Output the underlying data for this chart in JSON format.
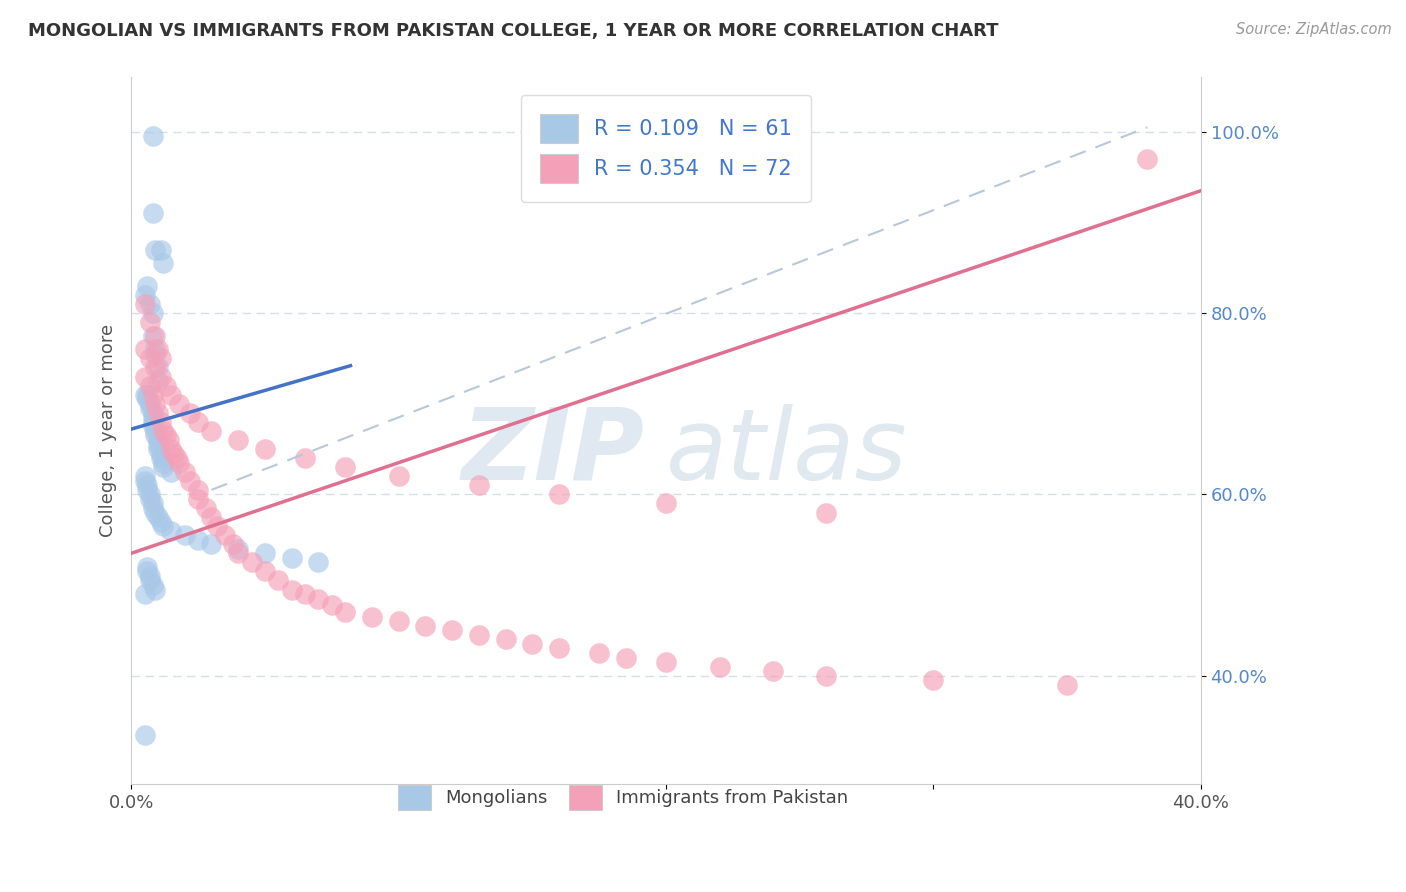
{
  "title": "MONGOLIAN VS IMMIGRANTS FROM PAKISTAN COLLEGE, 1 YEAR OR MORE CORRELATION CHART",
  "source_text": "Source: ZipAtlas.com",
  "ylabel": "College, 1 year or more",
  "xlim": [
    0.0,
    0.4
  ],
  "ylim": [
    0.28,
    1.06
  ],
  "yticks": [
    0.4,
    0.6,
    0.8,
    1.0
  ],
  "yticklabels": [
    "40.0%",
    "60.0%",
    "80.0%",
    "100.0%"
  ],
  "mongolian_color": "#a8c8e8",
  "pakistan_color": "#f4a0b8",
  "blue_line_color": "#4472c4",
  "pink_line_color": "#e07090",
  "dashed_line_color": "#b8c8d8",
  "watermark_zip": "ZIP",
  "watermark_atlas": "atlas",
  "blue_line_x": [
    0.0,
    0.082
  ],
  "blue_line_y": [
    0.672,
    0.742
  ],
  "pink_line_x": [
    0.0,
    0.4
  ],
  "pink_line_y": [
    0.535,
    0.935
  ],
  "dashed_line_x": [
    0.03,
    0.38
  ],
  "dashed_line_y": [
    0.605,
    1.005
  ],
  "mongolian_x": [
    0.008,
    0.008,
    0.009,
    0.011,
    0.012,
    0.005,
    0.006,
    0.007,
    0.008,
    0.008,
    0.009,
    0.009,
    0.01,
    0.01,
    0.005,
    0.006,
    0.006,
    0.007,
    0.007,
    0.008,
    0.008,
    0.008,
    0.008,
    0.009,
    0.009,
    0.01,
    0.01,
    0.01,
    0.011,
    0.011,
    0.012,
    0.012,
    0.015,
    0.005,
    0.005,
    0.006,
    0.006,
    0.007,
    0.007,
    0.008,
    0.008,
    0.009,
    0.01,
    0.011,
    0.012,
    0.015,
    0.02,
    0.025,
    0.03,
    0.04,
    0.05,
    0.06,
    0.07,
    0.006,
    0.006,
    0.007,
    0.007,
    0.008,
    0.009,
    0.005,
    0.005
  ],
  "mongolian_y": [
    0.995,
    0.91,
    0.87,
    0.87,
    0.855,
    0.82,
    0.83,
    0.81,
    0.8,
    0.775,
    0.76,
    0.755,
    0.74,
    0.725,
    0.71,
    0.71,
    0.705,
    0.7,
    0.695,
    0.69,
    0.685,
    0.68,
    0.675,
    0.67,
    0.665,
    0.66,
    0.655,
    0.65,
    0.645,
    0.64,
    0.635,
    0.63,
    0.625,
    0.62,
    0.615,
    0.61,
    0.605,
    0.6,
    0.595,
    0.59,
    0.585,
    0.58,
    0.575,
    0.57,
    0.565,
    0.56,
    0.555,
    0.55,
    0.545,
    0.54,
    0.535,
    0.53,
    0.525,
    0.52,
    0.515,
    0.51,
    0.505,
    0.5,
    0.495,
    0.49,
    0.335
  ],
  "pakistan_x": [
    0.005,
    0.007,
    0.009,
    0.01,
    0.011,
    0.005,
    0.007,
    0.008,
    0.009,
    0.01,
    0.011,
    0.012,
    0.013,
    0.014,
    0.015,
    0.016,
    0.017,
    0.018,
    0.02,
    0.022,
    0.025,
    0.025,
    0.028,
    0.03,
    0.032,
    0.035,
    0.038,
    0.04,
    0.045,
    0.05,
    0.055,
    0.06,
    0.065,
    0.07,
    0.075,
    0.08,
    0.09,
    0.1,
    0.11,
    0.12,
    0.13,
    0.14,
    0.15,
    0.16,
    0.175,
    0.185,
    0.2,
    0.22,
    0.24,
    0.26,
    0.3,
    0.35,
    0.005,
    0.007,
    0.009,
    0.011,
    0.013,
    0.015,
    0.018,
    0.022,
    0.025,
    0.03,
    0.04,
    0.05,
    0.065,
    0.08,
    0.1,
    0.13,
    0.16,
    0.2,
    0.26,
    0.38
  ],
  "pakistan_y": [
    0.81,
    0.79,
    0.775,
    0.76,
    0.75,
    0.73,
    0.72,
    0.71,
    0.7,
    0.69,
    0.68,
    0.67,
    0.665,
    0.66,
    0.65,
    0.645,
    0.64,
    0.635,
    0.625,
    0.615,
    0.605,
    0.595,
    0.585,
    0.575,
    0.565,
    0.555,
    0.545,
    0.535,
    0.525,
    0.515,
    0.505,
    0.495,
    0.49,
    0.485,
    0.478,
    0.47,
    0.465,
    0.46,
    0.455,
    0.45,
    0.445,
    0.44,
    0.435,
    0.43,
    0.425,
    0.42,
    0.415,
    0.41,
    0.405,
    0.4,
    0.395,
    0.39,
    0.76,
    0.75,
    0.74,
    0.73,
    0.72,
    0.71,
    0.7,
    0.69,
    0.68,
    0.67,
    0.66,
    0.65,
    0.64,
    0.63,
    0.62,
    0.61,
    0.6,
    0.59,
    0.58,
    0.97
  ]
}
